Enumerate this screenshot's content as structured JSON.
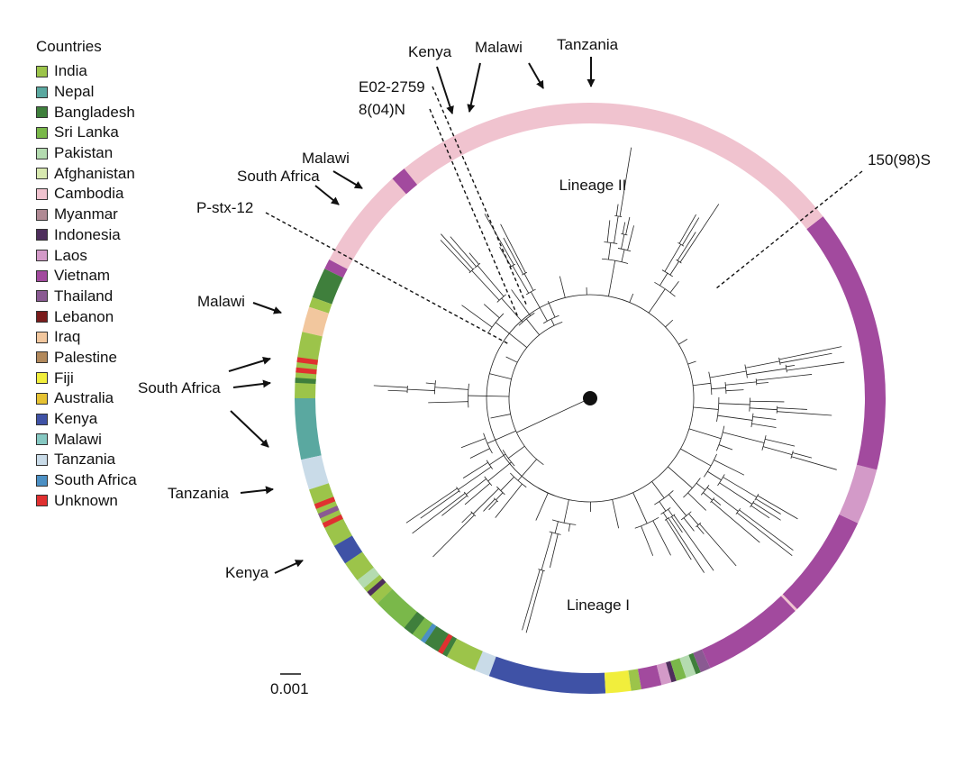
{
  "legend": {
    "title": "Countries",
    "items": [
      {
        "label": "India",
        "color": "#9cc44a"
      },
      {
        "label": "Nepal",
        "color": "#5aa8a0"
      },
      {
        "label": "Bangladesh",
        "color": "#3f7f3c"
      },
      {
        "label": "Sri Lanka",
        "color": "#7ab84a"
      },
      {
        "label": "Pakistan",
        "color": "#b4dbb0"
      },
      {
        "label": "Afghanistan",
        "color": "#d8e9b0"
      },
      {
        "label": "Cambodia",
        "color": "#f0c3cf"
      },
      {
        "label": "Myanmar",
        "color": "#b08a94"
      },
      {
        "label": "Indonesia",
        "color": "#4e2e5c"
      },
      {
        "label": "Laos",
        "color": "#d39ac8"
      },
      {
        "label": "Vietnam",
        "color": "#a24a9e"
      },
      {
        "label": "Thailand",
        "color": "#8a5a92"
      },
      {
        "label": "Lebanon",
        "color": "#7a1c1c"
      },
      {
        "label": "Iraq",
        "color": "#f2c79e"
      },
      {
        "label": "Palestine",
        "color": "#b2895c"
      },
      {
        "label": "Fiji",
        "color": "#f1ee3c"
      },
      {
        "label": "Australia",
        "color": "#e6c232"
      },
      {
        "label": "Kenya",
        "color": "#3f52a6"
      },
      {
        "label": "Malawi",
        "color": "#86c8c2"
      },
      {
        "label": "Tanzania",
        "color": "#c9dbe8"
      },
      {
        "label": "South Africa",
        "color": "#4c90c4"
      },
      {
        "label": "Unknown",
        "color": "#e03030"
      }
    ]
  },
  "labels": {
    "lineage_1": "Lineage I",
    "lineage_2": "Lineage II",
    "scale": "0.001",
    "strain_e02": "E02-2759",
    "strain_804": "8(04)N",
    "strain_150": "150(98)S",
    "strain_pstx": "P-stx-12"
  },
  "callouts": [
    {
      "id": "kenya-top",
      "text": "Kenya"
    },
    {
      "id": "malawi-top",
      "text": "Malawi"
    },
    {
      "id": "tanzania-top",
      "text": "Tanzania"
    },
    {
      "id": "malawi-nw",
      "text": "Malawi"
    },
    {
      "id": "south-africa-nw",
      "text": "South Africa"
    },
    {
      "id": "malawi-left",
      "text": "Malawi"
    },
    {
      "id": "south-africa-left",
      "text": "South Africa"
    },
    {
      "id": "tanzania-left",
      "text": "Tanzania"
    },
    {
      "id": "kenya-left",
      "text": "Kenya"
    }
  ],
  "ring": [
    {
      "country": "Malawi",
      "a0": -160,
      "a1": -119
    },
    {
      "country": "South Africa",
      "a0": -153,
      "a1": -152
    },
    {
      "country": "South Africa",
      "a0": -143,
      "a1": -142
    },
    {
      "country": "South Africa",
      "a0": -124,
      "a1": -122
    },
    {
      "country": "Tanzania",
      "a0": -119,
      "a1": -110
    },
    {
      "country": "Kenya",
      "a0": -110,
      "a1": -87
    },
    {
      "country": "Fiji",
      "a0": -87,
      "a1": -82
    },
    {
      "country": "India",
      "a0": -82,
      "a1": -80
    },
    {
      "country": "Vietnam",
      "a0": -80,
      "a1": -76
    },
    {
      "country": "Laos",
      "a0": -76,
      "a1": -74
    },
    {
      "country": "Indonesia",
      "a0": -74,
      "a1": -73
    },
    {
      "country": "Sri Lanka",
      "a0": -73,
      "a1": -71
    },
    {
      "country": "Pakistan",
      "a0": -71,
      "a1": -69
    },
    {
      "country": "Bangladesh",
      "a0": -69,
      "a1": -68
    },
    {
      "country": "Thailand",
      "a0": -68,
      "a1": -66
    },
    {
      "country": "Vietnam",
      "a0": -66,
      "a1": -46
    },
    {
      "country": "Cambodia",
      "a0": -46,
      "a1": -45.5
    },
    {
      "country": "Vietnam",
      "a0": -45.5,
      "a1": -25
    },
    {
      "country": "Laos",
      "a0": -25,
      "a1": -14
    },
    {
      "country": "Vietnam",
      "a0": -14,
      "a1": 38
    },
    {
      "country": "Cambodia",
      "a0": 38,
      "a1": 152
    },
    {
      "country": "Vietnam",
      "a0": 129,
      "a1": 132
    },
    {
      "country": "Vietnam",
      "a0": 152,
      "a1": 154
    },
    {
      "country": "Bangladesh",
      "a0": 154,
      "a1": 160
    },
    {
      "country": "India",
      "a0": 160,
      "a1": 162
    },
    {
      "country": "Iraq",
      "a0": 162,
      "a1": 167
    },
    {
      "country": "India",
      "a0": 167,
      "a1": 180
    },
    {
      "country": "Unknown",
      "a0": 172,
      "a1": 173
    },
    {
      "country": "Unknown",
      "a0": 174,
      "a1": 175
    },
    {
      "country": "Bangladesh",
      "a0": 176,
      "a1": 177
    },
    {
      "country": "Nepal",
      "a0": 180,
      "a1": 192
    },
    {
      "country": "Tanzania",
      "a0": 192,
      "a1": 198
    },
    {
      "country": "India",
      "a0": 198,
      "a1": 210
    },
    {
      "country": "Unknown",
      "a0": 201,
      "a1": 202
    },
    {
      "country": "Thailand",
      "a0": 203,
      "a1": 204
    },
    {
      "country": "Unknown",
      "a0": 205,
      "a1": 206
    },
    {
      "country": "Kenya",
      "a0": 210,
      "a1": 214
    },
    {
      "country": "India",
      "a0": 214,
      "a1": 224
    },
    {
      "country": "Pakistan",
      "a0": 218,
      "a1": 220
    },
    {
      "country": "Indonesia",
      "a0": 221,
      "a1": 222
    },
    {
      "country": "Sri Lanka",
      "a0": 224,
      "a1": 236
    },
    {
      "country": "Bangladesh",
      "a0": 231,
      "a1": 233
    },
    {
      "country": "South Africa",
      "a0": 235,
      "a1": 236
    },
    {
      "country": "Bangladesh",
      "a0": 236,
      "a1": 241
    },
    {
      "country": "Unknown",
      "a0": 239,
      "a1": 240
    },
    {
      "country": "India",
      "a0": 241,
      "a1": 247
    }
  ]
}
